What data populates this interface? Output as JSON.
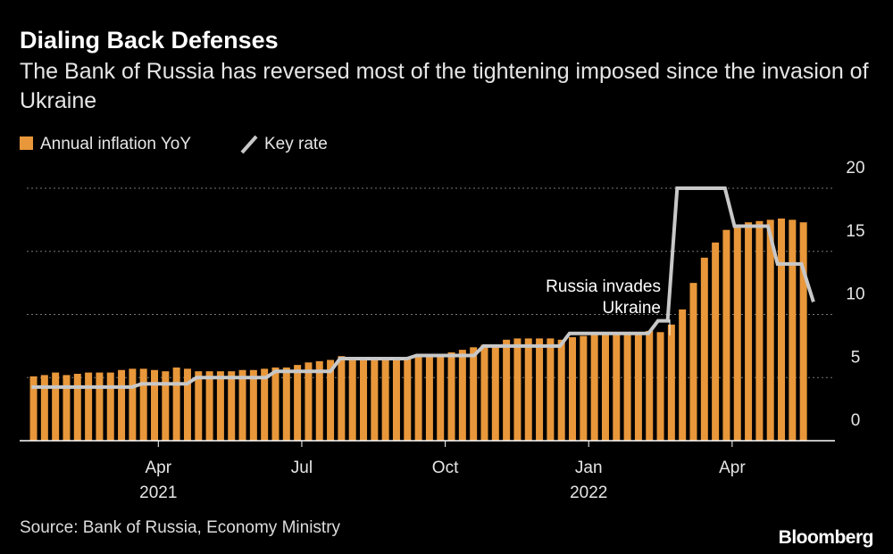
{
  "chart_data": {
    "type": "bar-line",
    "title": "Dialing Back Defenses",
    "subtitle": "The Bank of Russia has reversed most of the tightening imposed since the invasion of Ukraine",
    "annotation": "Russia invades Ukraine",
    "source": "Source: Bank of Russia, Economy Ministry",
    "brand": "Bloomberg",
    "x": [
      0.39,
      0.62,
      0.85,
      1.08,
      1.31,
      1.54,
      1.77,
      2.0,
      2.23,
      2.46,
      2.69,
      2.92,
      3.15,
      3.38,
      3.61,
      3.84,
      4.07,
      4.3,
      4.53,
      4.76,
      4.99,
      5.22,
      5.45,
      5.68,
      5.91,
      6.14,
      6.37,
      6.6,
      6.83,
      7.06,
      7.29,
      7.52,
      7.75,
      7.98,
      8.21,
      8.44,
      8.67,
      8.9,
      9.13,
      9.36,
      9.59,
      9.82,
      10.05,
      10.28,
      10.51,
      10.74,
      10.97,
      11.2,
      11.43,
      11.66,
      11.89,
      12.12,
      12.35,
      12.58,
      12.81,
      13.04,
      13.27,
      13.5,
      13.73,
      13.96,
      14.19,
      14.42,
      14.65,
      14.88,
      15.11,
      15.34,
      15.57,
      15.8,
      16.03,
      16.26,
      16.49
    ],
    "series": [
      {
        "name": "Annual inflation YoY",
        "color": "#e8973a",
        "values": [
          5.1,
          5.2,
          5.4,
          5.2,
          5.3,
          5.4,
          5.4,
          5.4,
          5.6,
          5.7,
          5.7,
          5.6,
          5.5,
          5.8,
          5.7,
          5.5,
          5.5,
          5.5,
          5.5,
          5.6,
          5.6,
          5.7,
          5.8,
          5.8,
          6.0,
          6.2,
          6.3,
          6.4,
          6.7,
          6.6,
          6.6,
          6.5,
          6.5,
          6.5,
          6.6,
          6.7,
          6.7,
          6.8,
          7.0,
          7.2,
          7.4,
          7.6,
          7.6,
          8.0,
          8.1,
          8.1,
          8.1,
          8.1,
          8.0,
          8.2,
          8.3,
          8.4,
          8.4,
          8.4,
          8.5,
          8.6,
          8.7,
          8.6,
          9.2,
          10.4,
          12.5,
          14.5,
          15.7,
          16.7,
          17.0,
          17.3,
          17.4,
          17.5,
          17.6,
          17.5,
          17.3
        ]
      },
      {
        "name": "Key rate",
        "color": "#c8c8c8",
        "x": [
          0.35,
          2.45,
          2.65,
          3.6,
          3.8,
          5.25,
          5.45,
          6.6,
          6.8,
          8.2,
          8.4,
          9.6,
          9.8,
          11.4,
          11.6,
          13.25,
          13.45,
          13.65,
          13.85,
          14.85,
          15.05,
          15.75,
          15.95,
          16.45,
          16.7
        ],
        "values": [
          4.25,
          4.25,
          4.5,
          4.5,
          5.0,
          5.0,
          5.5,
          5.5,
          6.5,
          6.5,
          6.75,
          6.75,
          7.5,
          7.5,
          8.5,
          8.5,
          9.5,
          9.5,
          20,
          20,
          17,
          17,
          14,
          14,
          11
        ]
      }
    ],
    "xlim": [
      0.1,
      17.15
    ],
    "xticks": [
      {
        "value": 3,
        "label": "Apr"
      },
      {
        "value": 6,
        "label": "Jul"
      },
      {
        "value": 9,
        "label": "Oct"
      },
      {
        "value": 12,
        "label": "Jan"
      },
      {
        "value": 15,
        "label": "Apr"
      }
    ],
    "year_labels": [
      {
        "value": 3,
        "label": "2021"
      },
      {
        "value": 12,
        "label": "2022"
      }
    ],
    "ylim": [
      0,
      20
    ],
    "yticks": [
      0,
      5,
      10,
      15,
      20
    ],
    "grid": true
  }
}
